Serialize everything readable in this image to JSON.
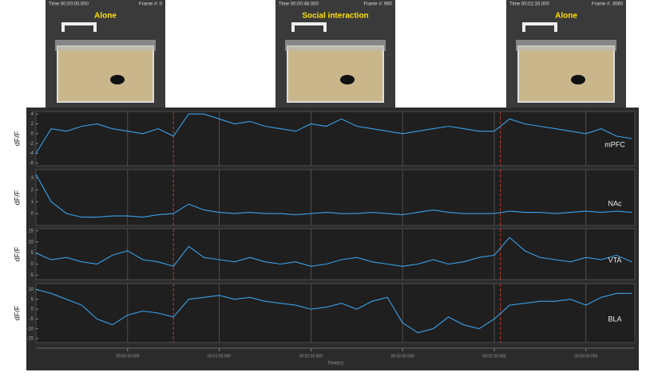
{
  "frames": [
    {
      "time": "Time 00:00:00.000",
      "frame": "Frame #: 0",
      "label": "Alone"
    },
    {
      "time": "Time 00:00:48.000",
      "frame": "Frame #: 960",
      "label": "Social interaction"
    },
    {
      "time": "Time 00:02:33.000",
      "frame": "Frame #: 3060",
      "label": "Alone"
    }
  ],
  "chart_data": [
    {
      "type": "line",
      "title": "mPFC",
      "ylabel": "dF/F",
      "color": "#3aa0e8",
      "marker_color": "#c0392b",
      "markers": [
        45,
        152
      ],
      "x": [
        0,
        5,
        10,
        15,
        20,
        25,
        30,
        35,
        40,
        45,
        50,
        55,
        60,
        65,
        70,
        75,
        80,
        85,
        90,
        95,
        100,
        105,
        110,
        115,
        120,
        125,
        130,
        135,
        140,
        145,
        150,
        155,
        160,
        165,
        170,
        175,
        180,
        185,
        190,
        195
      ],
      "values": [
        -4,
        1,
        0.5,
        1.5,
        2,
        1,
        0.5,
        0,
        1,
        -0.5,
        4,
        4,
        3,
        2,
        2.5,
        1.5,
        1,
        0.5,
        2,
        1.5,
        3,
        1.5,
        1,
        0.5,
        0,
        0.5,
        1,
        1.5,
        1,
        0.5,
        0.5,
        3,
        2,
        1.5,
        1,
        0.5,
        0,
        1,
        -0.5,
        -1
      ],
      "xlim": [
        0,
        196
      ],
      "ylim": [
        -6.5,
        4.5
      ],
      "yticks": [
        -6,
        -4,
        -2,
        0,
        2,
        4
      ],
      "xticks": [
        30,
        60,
        90,
        120,
        150,
        180
      ]
    },
    {
      "type": "line",
      "title": "NAc",
      "ylabel": "dF/F",
      "color": "#3aa0e8",
      "marker_color": "#c0392b",
      "markers": [
        45,
        152
      ],
      "x": [
        0,
        5,
        10,
        15,
        20,
        25,
        30,
        35,
        40,
        45,
        50,
        55,
        60,
        65,
        70,
        75,
        80,
        85,
        90,
        95,
        100,
        105,
        110,
        115,
        120,
        125,
        130,
        135,
        140,
        145,
        150,
        155,
        160,
        165,
        170,
        175,
        180,
        185,
        190,
        195
      ],
      "values": [
        3.3,
        1,
        0,
        -0.3,
        -0.3,
        -0.2,
        -0.2,
        -0.3,
        -0.1,
        0,
        0.8,
        0.3,
        0.1,
        0,
        0.1,
        0,
        0,
        -0.1,
        0,
        0.1,
        0,
        0,
        0.1,
        0,
        -0.1,
        0.1,
        0.3,
        0.1,
        0,
        0,
        0,
        0.2,
        0.1,
        0.1,
        0,
        0.1,
        0.2,
        0.1,
        0.2,
        0.1
      ],
      "xlim": [
        0,
        196
      ],
      "ylim": [
        -1,
        3.7
      ],
      "yticks": [
        0,
        1,
        2,
        3
      ],
      "xticks": [
        30,
        60,
        90,
        120,
        150,
        180
      ]
    },
    {
      "type": "line",
      "title": "VTA",
      "ylabel": "dF/F",
      "color": "#3aa0e8",
      "marker_color": "#c0392b",
      "markers": [
        45,
        152
      ],
      "x": [
        0,
        5,
        10,
        15,
        20,
        25,
        30,
        35,
        40,
        45,
        50,
        55,
        60,
        65,
        70,
        75,
        80,
        85,
        90,
        95,
        100,
        105,
        110,
        115,
        120,
        125,
        130,
        135,
        140,
        145,
        150,
        155,
        160,
        165,
        170,
        175,
        180,
        185,
        190,
        195
      ],
      "values": [
        5,
        2,
        3,
        1,
        0,
        4,
        6,
        2,
        1,
        -1,
        8,
        3,
        2,
        1,
        3,
        1,
        0,
        1,
        -1,
        0,
        2,
        3,
        1,
        0,
        -1,
        0,
        2,
        0,
        1,
        3,
        4,
        12,
        6,
        3,
        2,
        1,
        3,
        2,
        4,
        1
      ],
      "xlim": [
        0,
        196
      ],
      "ylim": [
        -7,
        16
      ],
      "yticks": [
        -5,
        0,
        5,
        10,
        15
      ],
      "xticks": [
        30,
        60,
        90,
        120,
        150,
        180
      ]
    },
    {
      "type": "line",
      "title": "BLA",
      "ylabel": "dF/F",
      "xlabel": "Time(s)",
      "color": "#3aa0e8",
      "marker_color": "#c0392b",
      "markers": [
        45,
        152
      ],
      "x": [
        0,
        5,
        10,
        15,
        20,
        25,
        30,
        35,
        40,
        45,
        50,
        55,
        60,
        65,
        70,
        75,
        80,
        85,
        90,
        95,
        100,
        105,
        110,
        115,
        120,
        125,
        130,
        135,
        140,
        145,
        150,
        155,
        160,
        165,
        170,
        175,
        180,
        185,
        190,
        195
      ],
      "values": [
        10,
        8,
        5,
        2,
        -5,
        -8,
        -3,
        -1,
        -2,
        -4,
        5,
        6,
        7,
        5,
        6,
        4,
        3,
        2,
        0,
        1,
        3,
        0,
        4,
        6,
        -7,
        -12,
        -10,
        -4,
        -8,
        -10,
        -5,
        2,
        3,
        4,
        4,
        5,
        2,
        6,
        8,
        8
      ],
      "xlim": [
        0,
        196
      ],
      "ylim": [
        -17,
        13
      ],
      "yticks": [
        -15,
        -10,
        -5,
        0,
        5,
        10
      ],
      "xticks": [
        {
          "value": 30,
          "label": "00:00:30.000"
        },
        {
          "value": 60,
          "label": "00:01:00.000"
        },
        {
          "value": 90,
          "label": "00:01:30.000"
        },
        {
          "value": 120,
          "label": "00:02:00.000"
        },
        {
          "value": 150,
          "label": "00:02:30.000"
        },
        {
          "value": 180,
          "label": "00:03:00.000"
        }
      ]
    }
  ]
}
